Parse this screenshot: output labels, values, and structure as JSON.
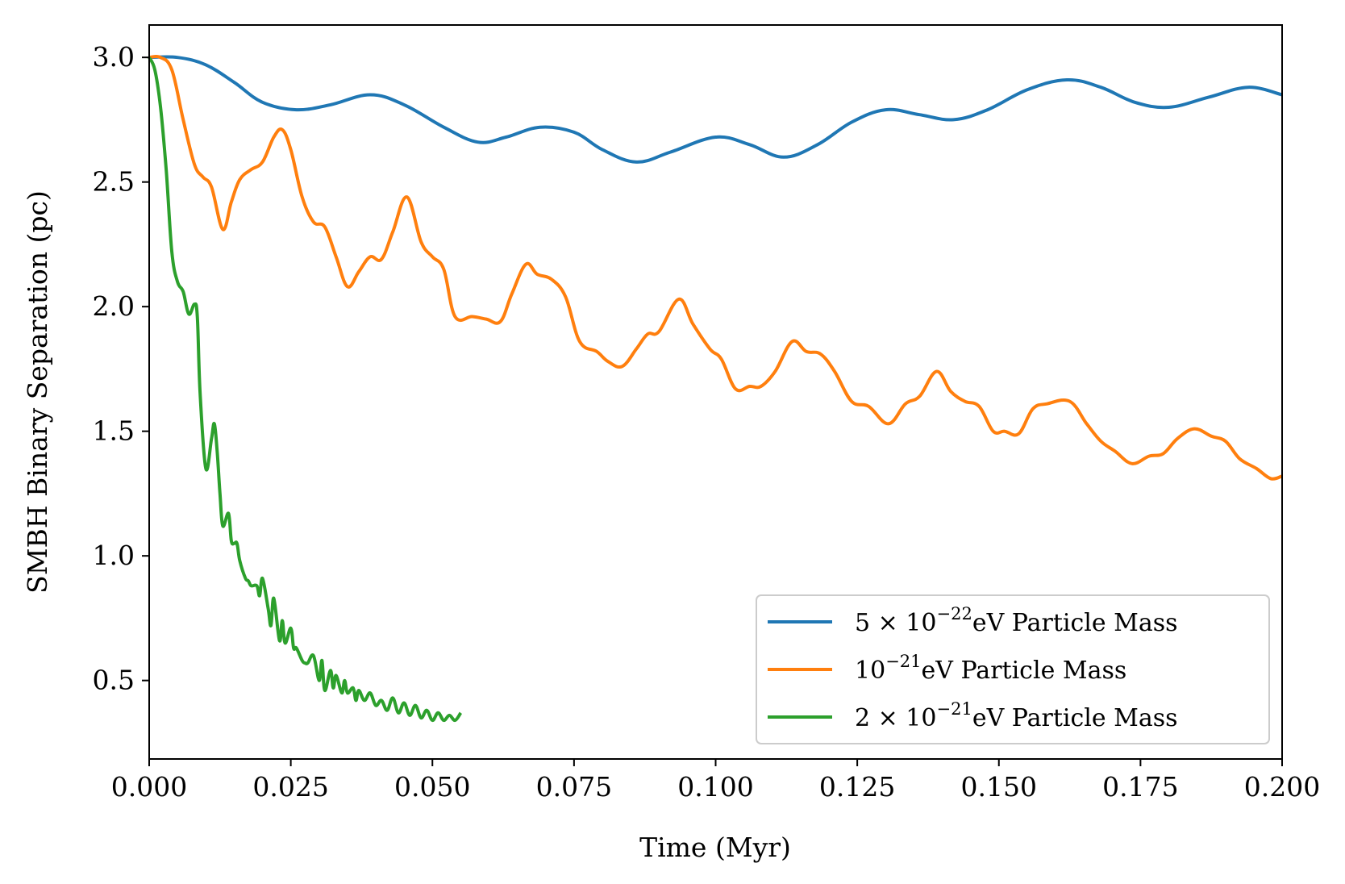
{
  "chart_data": {
    "type": "line",
    "title": "",
    "xlabel": "Time (Myr)",
    "ylabel": "SMBH Binary Separation (pc)",
    "xlim": [
      0.0,
      0.2
    ],
    "ylim": [
      0.185,
      3.13
    ],
    "grid": false,
    "legend_position": "lower-right",
    "xticks": [
      "0.000",
      "0.025",
      "0.050",
      "0.075",
      "0.100",
      "0.125",
      "0.150",
      "0.175",
      "0.200"
    ],
    "yticks": [
      "0.5",
      "1.0",
      "1.5",
      "2.0",
      "2.5",
      "3.0"
    ],
    "series": [
      {
        "name": "5×10^-22 eV Particle Mass",
        "legend_pre": "5 × 10",
        "legend_sup": "−22",
        "legend_post": "eV Particle Mass",
        "color": "#1f77b4",
        "x": [
          0.0,
          0.005,
          0.01,
          0.015,
          0.02,
          0.026,
          0.032,
          0.039,
          0.045,
          0.052,
          0.058,
          0.063,
          0.069,
          0.075,
          0.08,
          0.086,
          0.092,
          0.1,
          0.106,
          0.112,
          0.118,
          0.124,
          0.13,
          0.136,
          0.142,
          0.148,
          0.155,
          0.162,
          0.168,
          0.174,
          0.18,
          0.187,
          0.194,
          0.2
        ],
        "y": [
          3.0,
          3.0,
          2.97,
          2.9,
          2.82,
          2.79,
          2.81,
          2.85,
          2.81,
          2.72,
          2.66,
          2.68,
          2.72,
          2.7,
          2.63,
          2.58,
          2.62,
          2.68,
          2.65,
          2.6,
          2.65,
          2.74,
          2.79,
          2.77,
          2.75,
          2.79,
          2.87,
          2.91,
          2.88,
          2.82,
          2.8,
          2.84,
          2.88,
          2.85
        ]
      },
      {
        "name": "10^-21 eV Particle Mass",
        "legend_pre": "10",
        "legend_sup": "−21",
        "legend_post": "eV Particle Mass",
        "color": "#ff7f0e",
        "x": [
          0.0,
          0.002,
          0.004,
          0.006,
          0.008,
          0.0095,
          0.011,
          0.013,
          0.0145,
          0.016,
          0.018,
          0.02,
          0.022,
          0.0235,
          0.025,
          0.027,
          0.029,
          0.031,
          0.033,
          0.035,
          0.037,
          0.039,
          0.041,
          0.043,
          0.0455,
          0.048,
          0.05,
          0.052,
          0.054,
          0.057,
          0.0595,
          0.062,
          0.064,
          0.0665,
          0.0685,
          0.071,
          0.0735,
          0.076,
          0.079,
          0.081,
          0.0835,
          0.086,
          0.088,
          0.09,
          0.0935,
          0.096,
          0.099,
          0.101,
          0.1035,
          0.106,
          0.108,
          0.1105,
          0.1135,
          0.116,
          0.1185,
          0.121,
          0.124,
          0.127,
          0.1305,
          0.1335,
          0.136,
          0.139,
          0.1415,
          0.144,
          0.1465,
          0.149,
          0.151,
          0.1535,
          0.156,
          0.1585,
          0.1625,
          0.1655,
          0.168,
          0.1705,
          0.1735,
          0.1765,
          0.179,
          0.1815,
          0.1845,
          0.1875,
          0.19,
          0.1925,
          0.1955,
          0.198,
          0.2
        ],
        "y": [
          3.0,
          3.0,
          2.95,
          2.75,
          2.57,
          2.52,
          2.48,
          2.31,
          2.42,
          2.51,
          2.55,
          2.58,
          2.68,
          2.71,
          2.63,
          2.44,
          2.34,
          2.32,
          2.2,
          2.08,
          2.14,
          2.2,
          2.19,
          2.3,
          2.44,
          2.26,
          2.2,
          2.15,
          1.96,
          1.96,
          1.95,
          1.94,
          2.05,
          2.17,
          2.13,
          2.11,
          2.04,
          1.86,
          1.82,
          1.78,
          1.76,
          1.83,
          1.89,
          1.9,
          2.03,
          1.93,
          1.83,
          1.79,
          1.67,
          1.68,
          1.68,
          1.74,
          1.86,
          1.82,
          1.81,
          1.74,
          1.62,
          1.6,
          1.53,
          1.61,
          1.64,
          1.74,
          1.66,
          1.62,
          1.6,
          1.5,
          1.5,
          1.49,
          1.59,
          1.61,
          1.62,
          1.53,
          1.46,
          1.42,
          1.37,
          1.4,
          1.41,
          1.47,
          1.51,
          1.48,
          1.46,
          1.39,
          1.35,
          1.31,
          1.32
        ]
      },
      {
        "name": "2×10^-21 eV Particle Mass",
        "legend_pre": "2 × 10",
        "legend_sup": "−21",
        "legend_post": "eV Particle Mass",
        "color": "#2ca02c",
        "x": [
          0.0,
          0.001,
          0.002,
          0.003,
          0.004,
          0.005,
          0.006,
          0.007,
          0.008,
          0.0085,
          0.009,
          0.01,
          0.011,
          0.0115,
          0.012,
          0.0125,
          0.013,
          0.014,
          0.0145,
          0.015,
          0.0155,
          0.016,
          0.017,
          0.0175,
          0.018,
          0.019,
          0.0195,
          0.02,
          0.021,
          0.0215,
          0.022,
          0.023,
          0.0235,
          0.024,
          0.025,
          0.0255,
          0.026,
          0.027,
          0.0275,
          0.028,
          0.029,
          0.03,
          0.0305,
          0.031,
          0.032,
          0.0325,
          0.033,
          0.034,
          0.0345,
          0.035,
          0.036,
          0.0365,
          0.037,
          0.038,
          0.039,
          0.04,
          0.041,
          0.042,
          0.043,
          0.044,
          0.045,
          0.046,
          0.047,
          0.048,
          0.049,
          0.05,
          0.051,
          0.052,
          0.053,
          0.054,
          0.055
        ],
        "y": [
          3.0,
          2.95,
          2.8,
          2.55,
          2.22,
          2.1,
          2.06,
          1.97,
          2.01,
          1.96,
          1.65,
          1.35,
          1.47,
          1.53,
          1.42,
          1.25,
          1.12,
          1.17,
          1.06,
          1.05,
          1.05,
          0.98,
          0.91,
          0.9,
          0.88,
          0.88,
          0.84,
          0.91,
          0.79,
          0.72,
          0.83,
          0.66,
          0.74,
          0.65,
          0.71,
          0.63,
          0.63,
          0.58,
          0.57,
          0.57,
          0.6,
          0.5,
          0.58,
          0.46,
          0.54,
          0.47,
          0.52,
          0.45,
          0.5,
          0.45,
          0.47,
          0.42,
          0.46,
          0.42,
          0.45,
          0.4,
          0.42,
          0.38,
          0.43,
          0.37,
          0.41,
          0.36,
          0.4,
          0.35,
          0.38,
          0.34,
          0.37,
          0.34,
          0.36,
          0.34,
          0.37
        ]
      }
    ]
  }
}
